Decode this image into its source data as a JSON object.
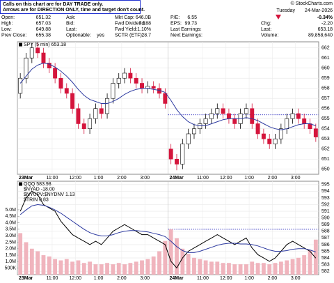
{
  "header": {
    "notice": [
      "Calls on this chart are for DAY TRADE only.",
      "Arrows are for DIRECTION ONLY, time and target don't count."
    ],
    "columns": [
      [
        {
          "label": "Open:",
          "value": "651.32"
        },
        {
          "label": "High:",
          "value": "657.03"
        },
        {
          "label": "Low:",
          "value": "649.88"
        },
        {
          "label": "Prev Close:",
          "value": "655.38"
        }
      ],
      [
        {
          "label": "Ask:"
        },
        {
          "label": "Bid:"
        },
        {
          "label": "Last:"
        },
        {
          "label": "Optionable:",
          "value": "yes"
        }
      ],
      [
        {
          "label": "Mkt Cap:",
          "value": "646.0B"
        },
        {
          "label": "Fwd Dividend:",
          "value": "7.188"
        },
        {
          "label": "Fwd Yield:",
          "value": "1.10%"
        },
        {
          "label": "SCTR (ETF):",
          "value": "28.7"
        }
      ],
      [
        {
          "label": "P/E:",
          "value": "6.55"
        },
        {
          "label": "EPS:",
          "value": "99.73"
        },
        {
          "label": "Last Earnings:"
        },
        {
          "label": "Next Earnings:"
        }
      ]
    ],
    "copyright": "© StockCharts.com",
    "day": "Tuesday",
    "date": "24-Mar-2026",
    "change_pct": "-0.34%",
    "rows": [
      {
        "label": "Chg:",
        "value": "-2.20"
      },
      {
        "label": "Last:",
        "value": "653.18"
      },
      {
        "label": "Volume:",
        "value": "89,858,640"
      }
    ]
  },
  "chart_data": [
    {
      "type": "candlestick",
      "legend": [
        "SPY (5 min) 653.18"
      ],
      "categories": [
        "23Mar",
        null,
        null,
        null,
        null,
        null,
        "11:00",
        null,
        null,
        null,
        "12:00",
        null,
        null,
        null,
        "1:00",
        null,
        null,
        null,
        "2:00",
        null,
        null,
        null,
        "3:00",
        null,
        null,
        null,
        "24Mar",
        null,
        null,
        null,
        null,
        null,
        "11:00",
        null,
        null,
        null,
        "12:00",
        null,
        null,
        null,
        "1:00",
        null,
        null,
        null,
        "2:00",
        null,
        null,
        null,
        "3:00",
        null,
        null,
        null
      ],
      "open": [
        657.5,
        659,
        661,
        662,
        661.5,
        660.5,
        660,
        659,
        658,
        657.5,
        656,
        654.5,
        654,
        655,
        656,
        655.5,
        657,
        658.5,
        659,
        659.5,
        659,
        658.5,
        658,
        658.2,
        658,
        657.5,
        652,
        651,
        650.5,
        652.5,
        653.5,
        654,
        654.5,
        655,
        655.5,
        656,
        655.5,
        655,
        654.5,
        655.5,
        656,
        654.5,
        653.5,
        653,
        652.5,
        653,
        654,
        655,
        655.5,
        655,
        654.5,
        654
      ],
      "high": [
        659.5,
        661.5,
        662.5,
        662.5,
        662,
        661,
        660.5,
        659.5,
        658.5,
        658,
        656.5,
        655,
        655.5,
        656.5,
        656.5,
        657.5,
        659,
        659.5,
        660,
        660,
        659.5,
        659,
        658.7,
        658.7,
        658.5,
        658,
        652.5,
        651.5,
        653,
        654,
        654.5,
        655,
        655.5,
        656,
        656.5,
        656.5,
        656,
        655.5,
        656,
        656.5,
        656.5,
        655,
        654,
        653.5,
        653.5,
        654.5,
        655.5,
        656,
        656,
        655.5,
        655,
        654.5
      ],
      "low": [
        657,
        658.5,
        660.5,
        661,
        660,
        659.5,
        658.5,
        657.5,
        657,
        655.5,
        654,
        653.5,
        653.5,
        654.5,
        655,
        655,
        656.5,
        658,
        658.5,
        658.5,
        658,
        657.5,
        657.5,
        657.5,
        657,
        656,
        650.5,
        649.9,
        650,
        652,
        653,
        653.5,
        654,
        654.5,
        655,
        655,
        654.5,
        654,
        654,
        655,
        654,
        653,
        652.5,
        652,
        652,
        652.5,
        653.5,
        654.5,
        654.5,
        654,
        653.5,
        652.7
      ],
      "close": [
        659,
        661,
        662,
        661.5,
        660.5,
        660,
        659,
        658,
        657.5,
        656,
        654.5,
        654,
        655,
        656,
        655.5,
        657,
        658.5,
        659,
        659.5,
        659,
        658.5,
        658,
        658.2,
        658,
        657.5,
        656.5,
        651,
        650.5,
        652.5,
        653.5,
        654,
        654.5,
        655,
        655.5,
        656,
        655.5,
        655,
        654.5,
        655.5,
        656,
        654.5,
        653.5,
        653,
        652.5,
        653,
        654,
        655,
        655.5,
        655,
        654.5,
        654,
        653.18
      ],
      "up_color": "#000000",
      "down_color": "#d4153c",
      "series": [
        {
          "type": "line",
          "color": "#2d3aa0",
          "values": [
            658.5,
            659.2,
            659.9,
            660.3,
            660.5,
            660.4,
            660.1,
            659.7,
            659.2,
            658.6,
            657.9,
            657.3,
            656.9,
            656.7,
            656.5,
            656.5,
            656.7,
            657.0,
            657.4,
            657.7,
            657.9,
            658.0,
            658.0,
            657.9,
            657.8,
            657.6,
            656.8,
            655.9,
            655.2,
            654.7,
            654.4,
            654.3,
            654.3,
            654.5,
            654.7,
            654.9,
            655.0,
            655.0,
            655.0,
            655.1,
            655.0,
            654.8,
            654.5,
            654.2,
            654.0,
            653.9,
            654.0,
            654.2,
            654.4,
            654.5,
            654.5,
            654.3
          ]
        }
      ],
      "reference_line": {
        "value": 655.38,
        "from": 26,
        "color": "#3030c0"
      },
      "ylim": [
        649.5,
        662.6
      ],
      "yticks": [
        650,
        651,
        652,
        653,
        654,
        655,
        656,
        657,
        658,
        659,
        660,
        661,
        662
      ],
      "grid": true
    },
    {
      "type": "combo",
      "legend": [
        "QQQ 583.98",
        "$NYAD -18.00",
        "$NYUPV:$NYDNV 1.13",
        "$TRIN 0.83"
      ],
      "categories": [
        "23Mar",
        null,
        null,
        null,
        null,
        null,
        "11:00",
        null,
        null,
        null,
        "12:00",
        null,
        null,
        null,
        "1:00",
        null,
        null,
        null,
        "2:00",
        null,
        null,
        null,
        "3:00",
        null,
        null,
        null,
        "24Mar",
        null,
        null,
        null,
        null,
        null,
        "11:00",
        null,
        null,
        null,
        "12:00",
        null,
        null,
        null,
        "1:00",
        null,
        null,
        null,
        "2:00",
        null,
        null,
        null,
        "3:00",
        null,
        null,
        null
      ],
      "series": [
        {
          "type": "bar",
          "axis": "y",
          "color": "#f0b4bd",
          "values": [
            3200000,
            2500000,
            2000000,
            1800000,
            1500000,
            1400000,
            1200000,
            1100000,
            1200000,
            1000000,
            1100000,
            900000,
            1000000,
            800000,
            800000,
            900000,
            800000,
            900000,
            800000,
            900000,
            1000000,
            1100000,
            1200000,
            1400000,
            1800000,
            2600000,
            3500000,
            2800000,
            2000000,
            1600000,
            1300000,
            1200000,
            1100000,
            1000000,
            1000000,
            900000,
            900000,
            800000,
            800000,
            800000,
            1000000,
            900000,
            900000,
            800000,
            900000,
            1000000,
            1100000,
            1200000,
            1300000,
            1500000,
            1900000,
            2700000
          ]
        },
        {
          "type": "line",
          "axis": "y2",
          "color": "#000000",
          "values": [
            591,
            593,
            594,
            593.5,
            592,
            591.5,
            591,
            589.5,
            588.5,
            587.5,
            587,
            586.5,
            586,
            586.5,
            586,
            587,
            588,
            588.5,
            589,
            588.5,
            588,
            587.5,
            587.5,
            587,
            586.5,
            586,
            583.5,
            582.5,
            584,
            585,
            585.5,
            586,
            586.5,
            587,
            587.5,
            587,
            586.5,
            586,
            586.5,
            587,
            585.5,
            584.5,
            584,
            583.5,
            584,
            585,
            586,
            586.5,
            586,
            585.5,
            585,
            583.98
          ]
        },
        {
          "type": "line",
          "axis": "y2",
          "color": "#2d3aa0",
          "values": [
            590.5,
            591.2,
            591.8,
            592.0,
            591.9,
            591.6,
            591.2,
            590.7,
            590.1,
            589.5,
            588.9,
            588.3,
            587.8,
            587.5,
            587.3,
            587.3,
            587.5,
            587.8,
            588.0,
            588.1,
            588.1,
            588.0,
            587.9,
            587.7,
            587.5,
            587.2,
            586.5,
            585.7,
            585.1,
            584.8,
            584.8,
            585.0,
            585.3,
            585.6,
            585.9,
            586.1,
            586.2,
            586.2,
            586.1,
            586.1,
            586.0,
            585.8,
            585.5,
            585.2,
            585.0,
            585.0,
            585.1,
            585.3,
            585.4,
            585.4,
            585.2,
            584.9
          ]
        }
      ],
      "reference_line": {
        "value": 588.3,
        "from": 26,
        "color": "#3030c0"
      },
      "ylim": [
        0,
        7200000
      ],
      "yticks": [
        {
          "value": 500000,
          "label": "500K"
        },
        {
          "value": 1000000,
          "label": "1.0M"
        },
        {
          "value": 1500000,
          "label": "1.5M"
        },
        {
          "value": 2000000,
          "label": "2.0M"
        },
        {
          "value": 2500000,
          "label": "2.5M"
        },
        {
          "value": 3000000,
          "label": "3.0M"
        },
        {
          "value": 3500000,
          "label": "3.5M"
        },
        {
          "value": 4000000,
          "label": "4.0M"
        },
        {
          "value": 4500000,
          "label": "4.5M"
        },
        {
          "value": 5000000,
          "label": "5.0M"
        }
      ],
      "y2lim": [
        581.5,
        595.5
      ],
      "y2ticks": [
        582,
        583,
        584,
        585,
        586,
        587,
        588,
        589,
        590,
        591,
        592,
        593,
        594,
        595
      ],
      "grid": true
    }
  ]
}
